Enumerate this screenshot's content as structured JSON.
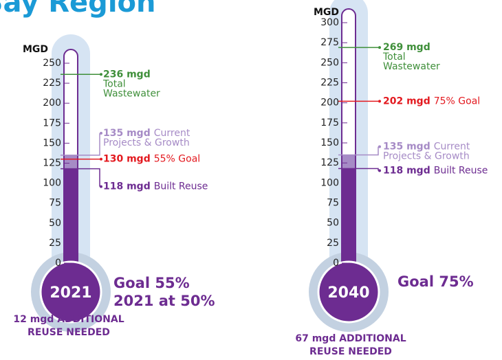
{
  "title": "Bay Region",
  "chart_data": [
    {
      "type": "thermometer",
      "axis_label": "MGD",
      "ylim": [
        0,
        250
      ],
      "yticks": [
        0,
        25,
        50,
        75,
        100,
        125,
        150,
        175,
        200,
        225,
        250
      ],
      "bulb_label": "2021",
      "goal_lines": [
        "Goal 55%",
        "2021 at 50%"
      ],
      "footer_lines": [
        "12 mgd ADDITIONAL",
        "REUSE NEEDED"
      ],
      "markers": [
        {
          "value": 236,
          "value_label": "236 mgd",
          "label": [
            "Total",
            "Wastewater"
          ],
          "color": "#3f8f3a"
        },
        {
          "value": 135,
          "value_label": "135 mgd",
          "label": [
            "Current",
            "Projects & Growth"
          ],
          "color": "#a68bc6",
          "fill": "#a68bc6"
        },
        {
          "value": 130,
          "value_label": "130 mgd",
          "label": [
            "55% Goal"
          ],
          "color": "#e3191f"
        },
        {
          "value": 118,
          "value_label": "118 mgd",
          "label": [
            "Built Reuse"
          ],
          "color": "#6d2c91",
          "fill": "#6d2c91"
        }
      ]
    },
    {
      "type": "thermometer",
      "axis_label": "MGD",
      "ylim": [
        0,
        300
      ],
      "yticks": [
        0,
        25,
        50,
        75,
        100,
        125,
        150,
        175,
        200,
        225,
        250,
        275,
        300
      ],
      "bulb_label": "2040",
      "goal_lines": [
        "Goal 75%"
      ],
      "footer_lines": [
        "67 mgd ADDITIONAL",
        "REUSE NEEDED"
      ],
      "markers": [
        {
          "value": 269,
          "value_label": "269 mgd",
          "label": [
            "Total",
            "Wastewater"
          ],
          "color": "#3f8f3a"
        },
        {
          "value": 202,
          "value_label": "202 mgd",
          "label": [
            "75% Goal"
          ],
          "color": "#e3191f"
        },
        {
          "value": 135,
          "value_label": "135 mgd",
          "label": [
            "Current",
            "Projects & Growth"
          ],
          "color": "#a68bc6",
          "fill": "#a68bc6"
        },
        {
          "value": 118,
          "value_label": "118 mgd",
          "label": [
            "Built Reuse"
          ],
          "color": "#6d2c91",
          "fill": "#6d2c91"
        }
      ]
    }
  ]
}
